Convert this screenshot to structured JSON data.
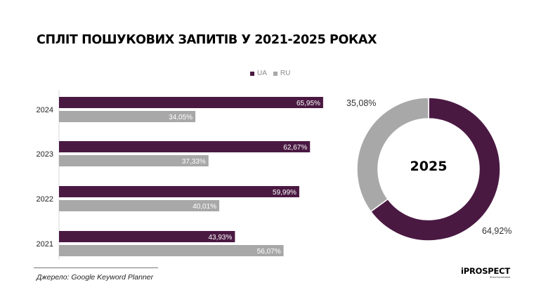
{
  "title": "СПЛІТ ПОШУКОВИХ ЗАПИТІВ У 2021-2025 РОКАХ",
  "legend": [
    {
      "label": "UA",
      "color": "#4a1942"
    },
    {
      "label": "RU",
      "color": "#a8a8a8"
    }
  ],
  "chart_data": [
    {
      "type": "bar",
      "orientation": "horizontal",
      "categories": [
        "2024",
        "2023",
        "2022",
        "2021"
      ],
      "series": [
        {
          "name": "UA",
          "color": "#4a1942",
          "values": [
            65.95,
            62.67,
            59.99,
            43.93
          ],
          "labels": [
            "65,95%",
            "62,67%",
            "59,99%",
            "43,93%"
          ]
        },
        {
          "name": "RU",
          "color": "#a8a8a8",
          "values": [
            34.05,
            37.33,
            40.01,
            56.07
          ],
          "labels": [
            "34,05%",
            "37,33%",
            "40,01%",
            "56,07%"
          ]
        }
      ],
      "xlim": [
        0,
        100
      ],
      "grid": false,
      "legend_position": "top-right"
    },
    {
      "type": "pie",
      "variant": "donut",
      "center_label": "2025",
      "slices": [
        {
          "name": "UA",
          "value": 64.92,
          "label": "64,92%",
          "color": "#4a1942"
        },
        {
          "name": "RU",
          "value": 35.08,
          "label": "35,08%",
          "color": "#a8a8a8"
        }
      ]
    }
  ],
  "source": "Джерело: Google Keyword Planner",
  "logo": {
    "text": "iPROSPECT",
    "subtext": "Brand Accelerated"
  }
}
